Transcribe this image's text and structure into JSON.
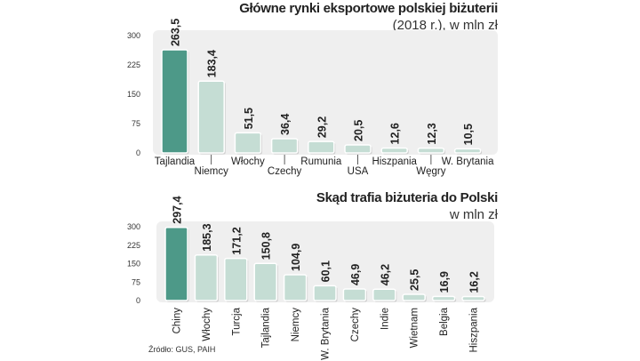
{
  "chart_data": [
    {
      "type": "bar",
      "title": "Główne rynki eksportowe polskiej biżuterii",
      "subtitle": "(2018 r.), w mln zł",
      "categories": [
        "Tajlandia",
        "Niemcy",
        "Włochy",
        "Czechy",
        "Rumunia",
        "USA",
        "Hiszpania",
        "Węgry",
        "W. Brytania"
      ],
      "values": [
        263.5,
        183.4,
        51.5,
        36.4,
        29.2,
        20.5,
        12.6,
        12.3,
        10.5
      ],
      "value_labels": [
        "263,5",
        "183,4",
        "51,5",
        "36,4",
        "29,2",
        "20,5",
        "12,6",
        "12,3",
        "10,5"
      ],
      "yticks": [
        "0",
        "75",
        "150",
        "225",
        "300"
      ],
      "ylim": [
        0,
        300
      ],
      "highlight_color": "#4d9988",
      "bar_color": "#c5ddd4",
      "label_orientation": "horizontal-staggered"
    },
    {
      "type": "bar",
      "title": "Skąd trafia biżuteria do Polski",
      "subtitle": "w mln zł",
      "categories": [
        "Chiny",
        "Włochy",
        "Turcja",
        "Tajlandia",
        "Niemcy",
        "W. Brytania",
        "Czechy",
        "Indie",
        "Wietnam",
        "Belgia",
        "Hiszpania"
      ],
      "values": [
        297.4,
        185.3,
        171.2,
        150.8,
        104.9,
        60.1,
        46.9,
        46.2,
        25.5,
        16.9,
        16.2
      ],
      "value_labels": [
        "297,4",
        "185,3",
        "171,2",
        "150,8",
        "104,9",
        "60,1",
        "46,9",
        "46,2",
        "25,5",
        "16,9",
        "16,2"
      ],
      "yticks": [
        "0",
        "75",
        "150",
        "225",
        "300"
      ],
      "ylim": [
        0,
        300
      ],
      "highlight_color": "#4d9988",
      "bar_color": "#c5ddd4",
      "label_orientation": "vertical"
    }
  ],
  "source": "Źródło: GUS, PAIH"
}
